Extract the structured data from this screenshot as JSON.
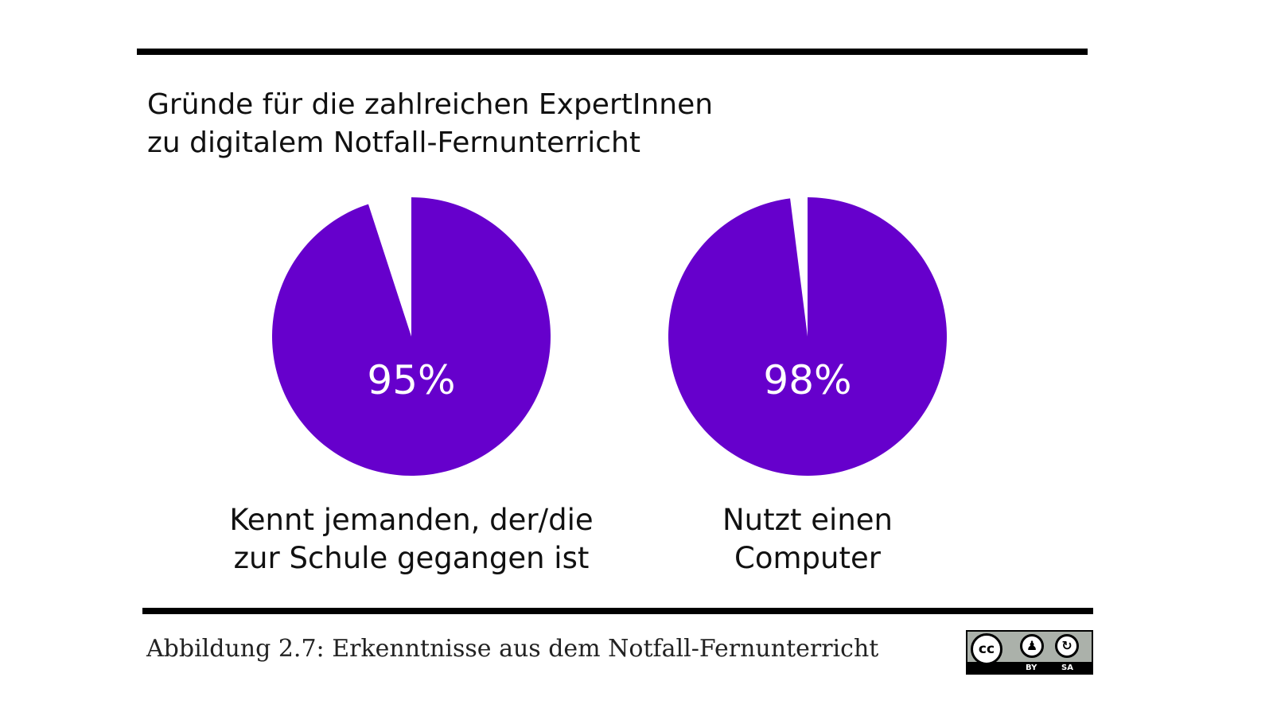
{
  "title": {
    "line1": "Gründe für die zahlreichen ExpertInnen",
    "line2": "zu digitalem Notfall-Fernunterricht"
  },
  "chart_data": [
    {
      "type": "pie",
      "value_percent": 95,
      "value_label": "95%",
      "label_lines": [
        "Kennt jemanden, der/die",
        "zur Schule gegangen ist"
      ],
      "colors": {
        "fill": "#6600cc",
        "remainder": "#ffffff"
      }
    },
    {
      "type": "pie",
      "value_percent": 98,
      "value_label": "98%",
      "label_lines": [
        "Nutzt einen",
        "Computer"
      ],
      "colors": {
        "fill": "#6600cc",
        "remainder": "#ffffff"
      }
    }
  ],
  "caption": "Abbildung 2.7: Erkenntnisse aus dem Notfall-Fernunterricht",
  "license": {
    "icon": "cc-by-sa-icon",
    "cc": "cc",
    "by": "BY",
    "sa": "SA"
  }
}
